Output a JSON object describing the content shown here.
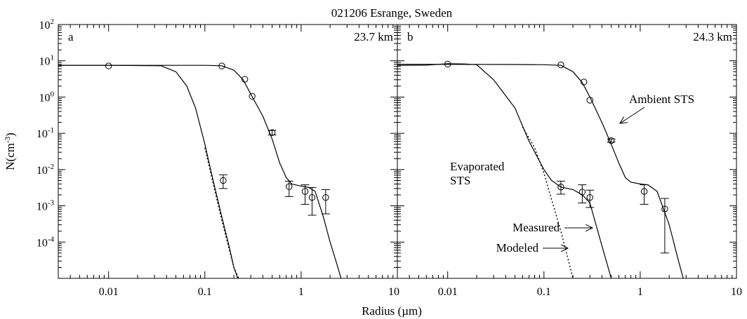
{
  "figure": {
    "title": "021206 Esrange, Sweden",
    "xlabel": "Radius (µm)",
    "ylabel_main": "N(cm",
    "ylabel_sup": "-3",
    "ylabel_close": ")"
  },
  "chart_data": [
    {
      "type": "line",
      "panel_label": "a",
      "altitude": "23.7 km",
      "xscale": "log",
      "yscale": "log",
      "xlim": [
        0.003,
        10
      ],
      "ylim": [
        1e-05,
        100
      ],
      "x_ticks": [
        "0.01",
        "0.1",
        "1",
        "10"
      ],
      "y_ticks": [
        "10^2",
        "10^1",
        "10^0",
        "10^-1",
        "10^-2",
        "10^-3",
        "10^-4"
      ],
      "series": [
        {
          "style": "solid",
          "x": [
            0.003,
            0.01,
            0.02,
            0.035,
            0.05,
            0.065,
            0.08,
            0.1,
            0.12,
            0.15,
            0.18,
            0.2,
            0.22
          ],
          "y": [
            7.5,
            7.5,
            7.4,
            7.3,
            5.0,
            2.0,
            0.5,
            0.05,
            0.006,
            0.0005,
            7e-05,
            2e-05,
            1e-05
          ]
        },
        {
          "style": "dotted",
          "x": [
            0.1,
            0.12,
            0.15,
            0.18,
            0.2,
            0.225
          ],
          "y": [
            0.04,
            0.005,
            0.0004,
            6e-05,
            2e-05,
            1e-05
          ]
        },
        {
          "style": "solid",
          "x": [
            0.003,
            0.05,
            0.1,
            0.15,
            0.2,
            0.25,
            0.3,
            0.4,
            0.5,
            0.6,
            0.7,
            0.8,
            1.0,
            1.2,
            1.4,
            1.7,
            2.0,
            2.3,
            2.6
          ],
          "y": [
            7.5,
            7.5,
            7.5,
            7.3,
            5.5,
            3.0,
            1.2,
            0.3,
            0.07,
            0.015,
            0.006,
            0.004,
            0.0035,
            0.0032,
            0.0025,
            0.0005,
            0.0001,
            3e-05,
            1e-05
          ]
        }
      ],
      "points": [
        {
          "x": 0.01,
          "y": 7.2
        },
        {
          "x": 0.15,
          "y": 7.2
        },
        {
          "x": 0.26,
          "y": 3.1
        },
        {
          "x": 0.31,
          "y": 1.05
        },
        {
          "x": 0.5,
          "y": 0.105,
          "lo": 0.09,
          "hi": 0.12
        },
        {
          "x": 0.155,
          "y": 0.005,
          "lo": 0.003,
          "hi": 0.0072
        },
        {
          "x": 0.75,
          "y": 0.0034,
          "lo": 0.0018,
          "hi": 0.0048
        },
        {
          "x": 1.1,
          "y": 0.0025,
          "lo": 0.0011,
          "hi": 0.0038
        },
        {
          "x": 1.3,
          "y": 0.0017,
          "lo": 0.00055,
          "hi": 0.0032
        },
        {
          "x": 1.8,
          "y": 0.0017,
          "lo": 0.0006,
          "hi": 0.0028
        }
      ],
      "annotations": []
    },
    {
      "type": "line",
      "panel_label": "b",
      "altitude": "24.3 km",
      "xscale": "log",
      "yscale": "log",
      "xlim": [
        0.003,
        10
      ],
      "ylim": [
        1e-05,
        100
      ],
      "x_ticks": [
        "0.01",
        "0.1",
        "1",
        "10"
      ],
      "series": [
        {
          "style": "solid",
          "x": [
            0.003,
            0.006,
            0.01,
            0.015,
            0.02,
            0.03,
            0.05,
            0.07,
            0.1,
            0.12,
            0.15,
            0.2,
            0.25,
            0.3,
            0.4,
            0.5
          ],
          "y": [
            7.5,
            7.6,
            8.3,
            8.2,
            7.8,
            3.0,
            0.5,
            0.06,
            0.01,
            0.005,
            0.0033,
            0.0028,
            0.002,
            0.0012,
            8e-05,
            1e-05
          ]
        },
        {
          "style": "dotted",
          "x": [
            0.06,
            0.08,
            0.1,
            0.12,
            0.15,
            0.18,
            0.2
          ],
          "y": [
            0.15,
            0.04,
            0.008,
            0.0015,
            0.0002,
            3e-05,
            1e-05
          ]
        },
        {
          "style": "solid",
          "x": [
            0.003,
            0.05,
            0.1,
            0.15,
            0.2,
            0.25,
            0.3,
            0.4,
            0.5,
            0.6,
            0.7,
            0.8,
            1.0,
            1.2,
            1.5,
            2.0,
            2.5,
            2.8
          ],
          "y": [
            8.0,
            7.9,
            7.8,
            7.5,
            5.0,
            2.5,
            1.0,
            0.2,
            0.05,
            0.015,
            0.006,
            0.0045,
            0.004,
            0.0038,
            0.0025,
            0.0003,
            3e-05,
            1e-05
          ]
        }
      ],
      "points": [
        {
          "x": 0.01,
          "y": 8.1
        },
        {
          "x": 0.15,
          "y": 7.7
        },
        {
          "x": 0.26,
          "y": 2.6
        },
        {
          "x": 0.3,
          "y": 0.82
        },
        {
          "x": 0.5,
          "y": 0.063,
          "lo": 0.057,
          "hi": 0.07
        },
        {
          "x": 0.15,
          "y": 0.0033,
          "lo": 0.0021,
          "hi": 0.0048
        },
        {
          "x": 0.25,
          "y": 0.0024,
          "lo": 0.0012,
          "hi": 0.0038
        },
        {
          "x": 0.3,
          "y": 0.0017,
          "lo": 0.0009,
          "hi": 0.0027
        },
        {
          "x": 1.1,
          "y": 0.0025,
          "lo": 0.0011,
          "hi": 0.0038
        },
        {
          "x": 1.8,
          "y": 0.00082,
          "lo": 5e-05,
          "hi": 0.0016
        }
      ],
      "annotations": [
        {
          "id": "ambient",
          "lines": [
            "Ambient STS"
          ]
        },
        {
          "id": "evaporated",
          "lines": [
            "Evaporated",
            "STS"
          ]
        },
        {
          "id": "measured",
          "lines": [
            "Measured"
          ]
        },
        {
          "id": "modeled",
          "lines": [
            "Modeled"
          ]
        }
      ]
    }
  ]
}
